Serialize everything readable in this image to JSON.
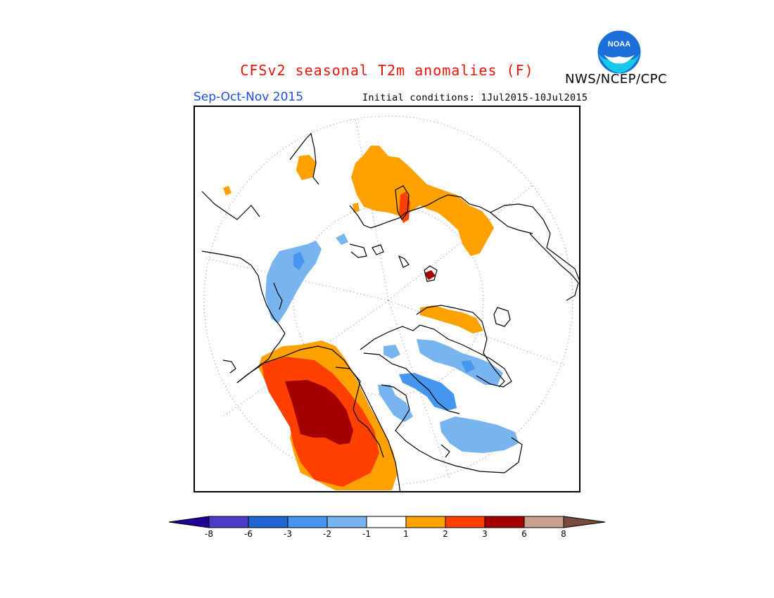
{
  "header": {
    "title": "CFSv2 seasonal T2m anomalies (F)",
    "period": "Sep-Oct-Nov 2015",
    "initial_conditions": "Initial conditions: 1Jul2015-10Jul2015",
    "agency": "NWS/NCEP/CPC",
    "logo_text": "NOAA"
  },
  "colors": {
    "title": "#e8140c",
    "period": "#1e4fd6",
    "warm_1_2": "#ffa200",
    "warm_2_3": "#ff4000",
    "warm_3_6": "#a50000",
    "cool_1_2": "#78b4f0",
    "cool_2_3": "#4696f0"
  },
  "legend": {
    "ticks": [
      "-8",
      "-6",
      "-3",
      "-2",
      "-1",
      "1",
      "2",
      "3",
      "6",
      "8"
    ],
    "bins": [
      {
        "range": "<-8",
        "color": "#1e0096"
      },
      {
        "range": "-8 to -6",
        "color": "#4b3cc8"
      },
      {
        "range": "-6 to -3",
        "color": "#1e64d2"
      },
      {
        "range": "-3 to -2",
        "color": "#4696f0"
      },
      {
        "range": "-2 to -1",
        "color": "#78b4f0"
      },
      {
        "range": "-1 to 1",
        "color": "#ffffff"
      },
      {
        "range": "1 to 2",
        "color": "#ffa200"
      },
      {
        "range": "2 to 3",
        "color": "#ff4000"
      },
      {
        "range": "3 to 6",
        "color": "#a50000"
      },
      {
        "range": "6 to 8",
        "color": "#c8a08c"
      },
      {
        "range": ">8",
        "color": "#784b3c"
      }
    ]
  }
}
